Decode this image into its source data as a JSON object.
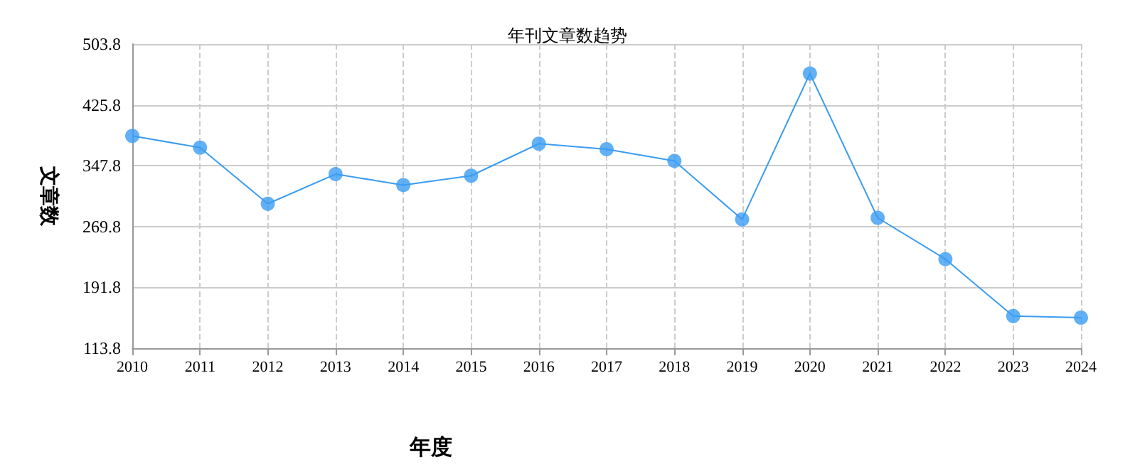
{
  "chart_data": {
    "type": "line",
    "title": "年刊文章数趋势",
    "xlabel": "年度",
    "ylabel": "文章数",
    "categories": [
      "2010",
      "2011",
      "2012",
      "2013",
      "2014",
      "2015",
      "2016",
      "2017",
      "2018",
      "2019",
      "2020",
      "2021",
      "2022",
      "2023",
      "2024"
    ],
    "series": [
      {
        "color": "#3b9cf2",
        "values": [
          386,
          371,
          299,
          337,
          323,
          335,
          376,
          369,
          354,
          279,
          466,
          281,
          228,
          155,
          153
        ]
      }
    ],
    "ylim": [
      113.8,
      503.8
    ],
    "yticks": [
      113.8,
      191.8,
      269.8,
      347.8,
      425.8,
      503.8
    ],
    "grid": true,
    "marker": "circle"
  }
}
